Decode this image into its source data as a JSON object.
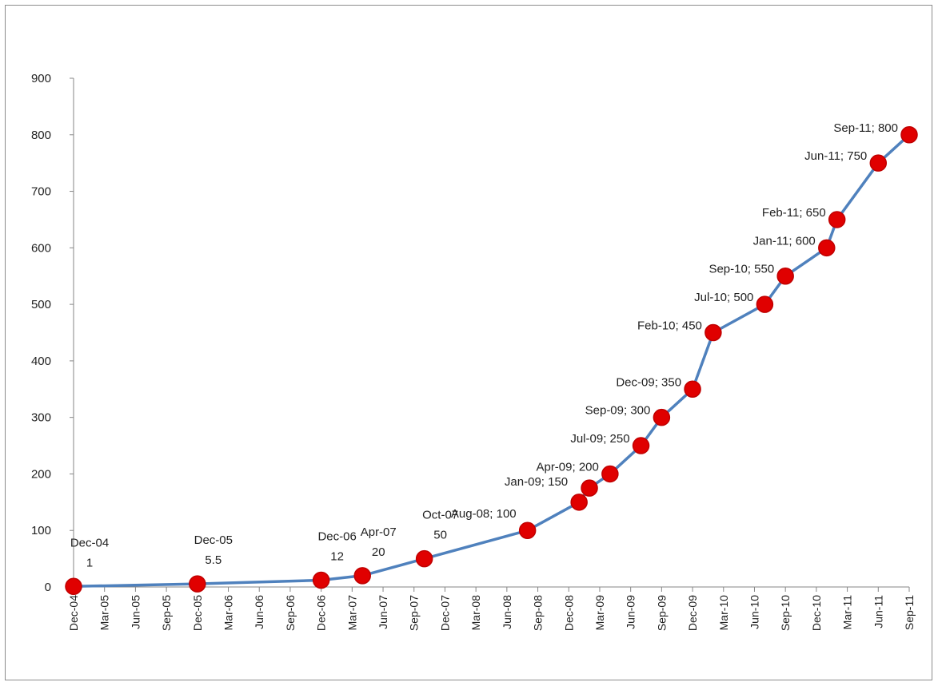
{
  "chart_data": {
    "type": "line",
    "title": "",
    "xlabel": "",
    "ylabel": "",
    "ylim": [
      0,
      900
    ],
    "yticks": [
      0,
      100,
      200,
      300,
      400,
      500,
      600,
      700,
      800,
      900
    ],
    "grid": false,
    "legend": "none",
    "colors": {
      "line": "#4f81bd",
      "marker": "#e00000",
      "marker_edge": "#c00000"
    },
    "x_tick_labels": [
      "Dec-04",
      "Mar-05",
      "Jun-05",
      "Sep-05",
      "Dec-05",
      "Mar-06",
      "Jun-06",
      "Sep-06",
      "Dec-06",
      "Mar-07",
      "Jun-07",
      "Sep-07",
      "Dec-07",
      "Mar-08",
      "Jun-08",
      "Sep-08",
      "Dec-08",
      "Mar-09",
      "Jun-09",
      "Sep-09",
      "Dec-09",
      "Mar-10",
      "Jun-10",
      "Sep-10",
      "Dec-10",
      "Mar-11",
      "Jun-11",
      "Sep-11"
    ],
    "series": [
      {
        "points": [
          {
            "x": "2004-12",
            "y": 1,
            "label": [
              "Dec-04",
              "1"
            ]
          },
          {
            "x": "2005-12",
            "y": 5.5,
            "label": [
              "Dec-05",
              "5.5"
            ]
          },
          {
            "x": "2006-12",
            "y": 12,
            "label": [
              "Dec-06",
              "12"
            ]
          },
          {
            "x": "2007-04",
            "y": 20,
            "label": [
              "Apr-07",
              "20"
            ]
          },
          {
            "x": "2007-10",
            "y": 50,
            "label": [
              "Oct-07",
              "50"
            ]
          },
          {
            "x": "2008-08",
            "y": 100,
            "label": [
              "Aug-08;  100"
            ]
          },
          {
            "x": "2009-01",
            "y": 150,
            "label": [
              "Jan-09; 150"
            ]
          },
          {
            "x": "2009-02",
            "y": 175,
            "label": []
          },
          {
            "x": "2009-04",
            "y": 200,
            "label": [
              "Apr-09; 200"
            ]
          },
          {
            "x": "2009-07",
            "y": 250,
            "label": [
              "Jul-09; 250"
            ]
          },
          {
            "x": "2009-09",
            "y": 300,
            "label": [
              "Sep-09; 300"
            ]
          },
          {
            "x": "2009-12",
            "y": 350,
            "label": [
              "Dec-09; 350"
            ]
          },
          {
            "x": "2010-02",
            "y": 450,
            "label": [
              "Feb-10; 450"
            ]
          },
          {
            "x": "2010-07",
            "y": 500,
            "label": [
              "Jul-10; 500"
            ]
          },
          {
            "x": "2010-09",
            "y": 550,
            "label": [
              "Sep-10; 550"
            ]
          },
          {
            "x": "2011-01",
            "y": 600,
            "label": [
              "Jan-11; 600"
            ]
          },
          {
            "x": "2011-02",
            "y": 650,
            "label": [
              "Feb-11; 650"
            ]
          },
          {
            "x": "2011-06",
            "y": 750,
            "label": [
              "Jun-11; 750"
            ]
          },
          {
            "x": "2011-09",
            "y": 800,
            "label": [
              "Sep-11; 800"
            ]
          }
        ]
      }
    ]
  }
}
